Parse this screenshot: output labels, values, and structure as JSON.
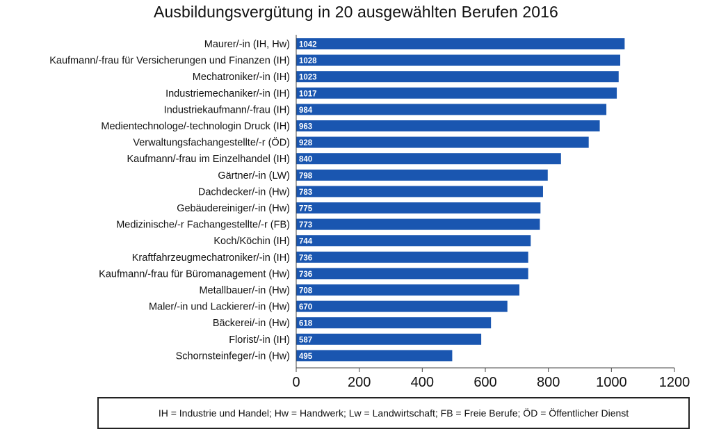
{
  "chart_data": {
    "type": "bar",
    "orientation": "horizontal",
    "title": "Ausbildungsvergütung in 20 ausgewählten Berufen 2016",
    "categories": [
      "Maurer/-in (IH, Hw)",
      "Kaufmann/-frau für Versicherungen und Finanzen (IH)",
      "Mechatroniker/-in (IH)",
      "Industriemechaniker/-in (IH)",
      "Industriekaufmann/-frau (IH)",
      "Medientechnologe/-technologin Druck (IH)",
      "Verwaltungsfachangestellte/-r (ÖD)",
      "Kaufmann/-frau im Einzelhandel (IH)",
      "Gärtner/-in (LW)",
      "Dachdecker/-in (Hw)",
      "Gebäudereiniger/-in (Hw)",
      "Medizinische/-r Fachangestellte/-r (FB)",
      "Koch/Köchin (IH)",
      "Kraftfahrzeugmechatroniker/-in (IH)",
      "Kaufmann/-frau für Büromanagement (Hw)",
      "Metallbauer/-in (Hw)",
      "Maler/-in und Lackierer/-in (Hw)",
      "Bäckerei/-in (Hw)",
      "Florist/-in (IH)",
      "Schornsteinfeger/-in (Hw)"
    ],
    "values": [
      1042,
      1028,
      1023,
      1017,
      984,
      963,
      928,
      840,
      798,
      783,
      775,
      773,
      744,
      736,
      736,
      708,
      670,
      618,
      587,
      495
    ],
    "xlim": [
      0,
      1200
    ],
    "xticks": [
      "0",
      "200",
      "400",
      "600",
      "800",
      "1000",
      "1200"
    ],
    "grid": false,
    "bar_color": "#1a56b0",
    "legend_text": "IH = Industrie und Handel; Hw = Handwerk; Lw = Landwirtschaft; FB = Freie Berufe; ÖD = Öffentlicher Dienst"
  }
}
